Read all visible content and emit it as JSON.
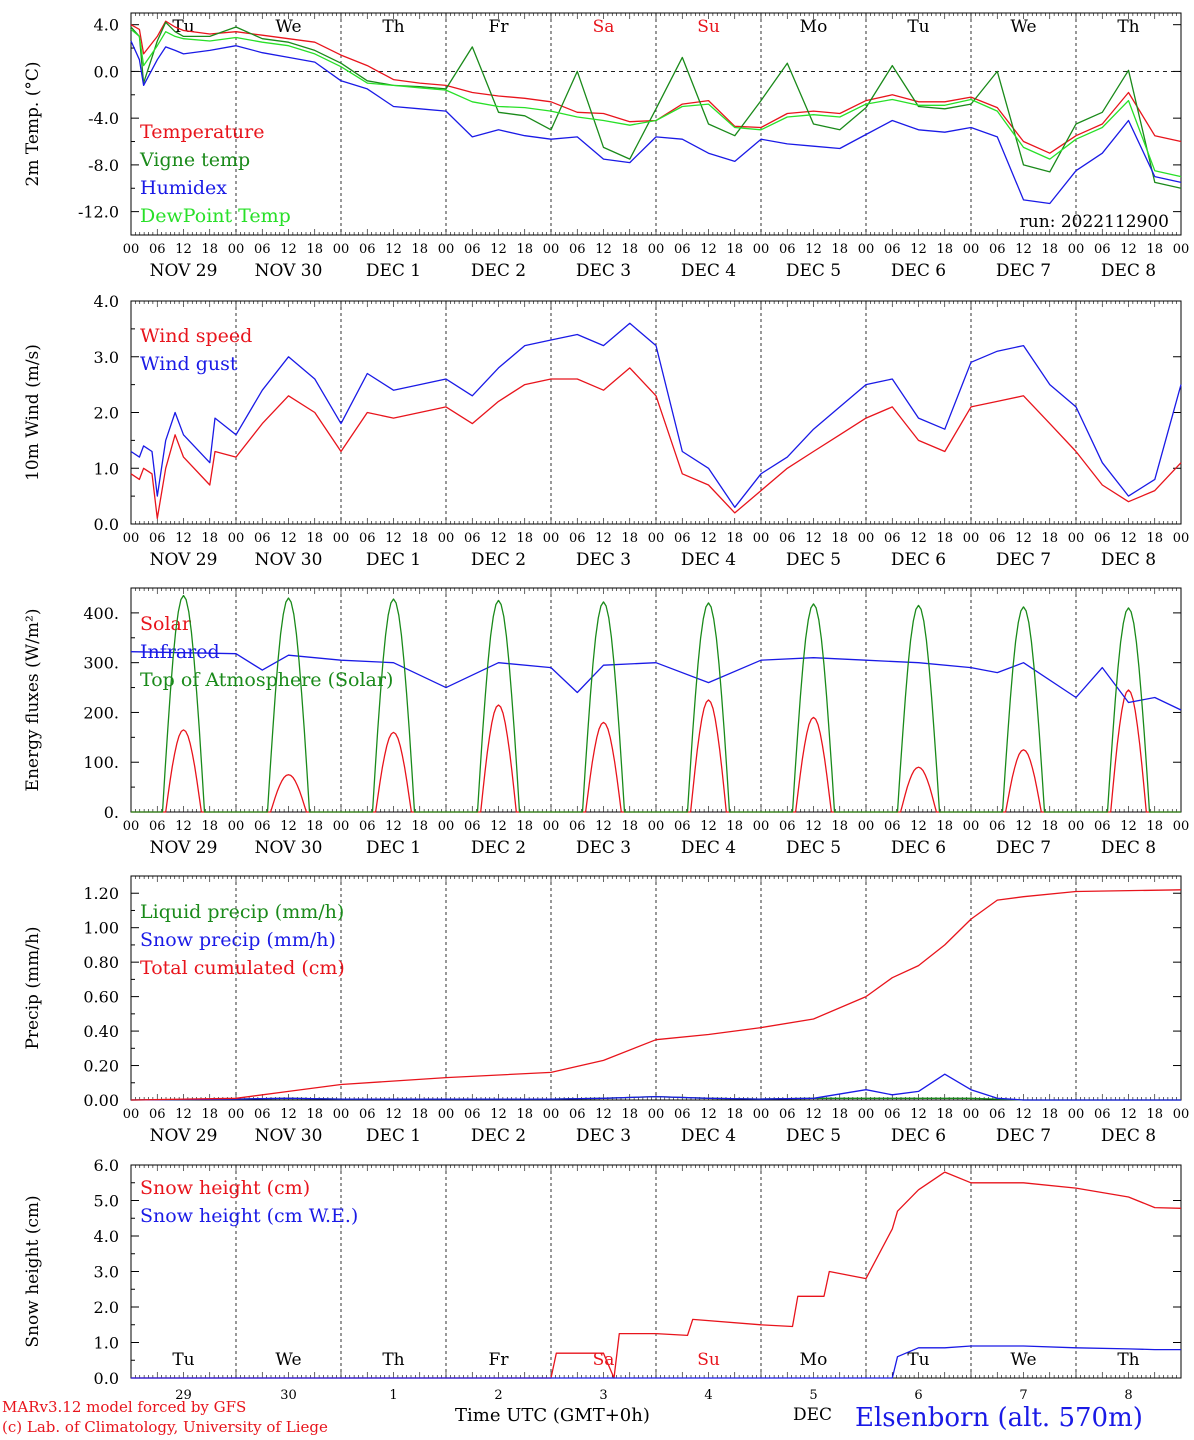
{
  "footer": {
    "model_line": "MARv3.12 model forced by GFS",
    "credit_line": "(c) Lab. of Climatology, University of Liege",
    "time_axis": "Time UTC (GMT+0h)",
    "month": "DEC",
    "station": "Elsenborn (alt. 570m)"
  },
  "day_names": [
    "Tu",
    "We",
    "Th",
    "Fr",
    "Sa",
    "Su",
    "Mo",
    "Tu",
    "We",
    "Th"
  ],
  "weekend_flags": [
    false,
    false,
    false,
    false,
    true,
    true,
    false,
    false,
    false,
    false
  ],
  "date_labels": [
    "NOV 29",
    "NOV 30",
    "DEC  1",
    "DEC  2",
    "DEC  3",
    "DEC  4",
    "DEC  5",
    "DEC  6",
    "DEC  7",
    "DEC  8"
  ],
  "hour_ticks": [
    "00",
    "06",
    "12",
    "18"
  ],
  "last_hour_tick": "00",
  "snow_day_numbers": [
    "29",
    "30",
    "1",
    "2",
    "3",
    "4",
    "5",
    "6",
    "7",
    "8"
  ],
  "colors": {
    "red": "#e8141c",
    "green": "#1a8a1a",
    "blue": "#1a1ae6",
    "lightgreen": "#28e028",
    "weekend": "#e8141c"
  },
  "chart_data": [
    {
      "id": "temp",
      "type": "line",
      "ylabel": "2m Temp. (°C)",
      "ylim": [
        -14,
        5
      ],
      "yticks": [
        "4.0",
        "0.0",
        "-4.0",
        "-8.0",
        "-12.0"
      ],
      "ytick_values": [
        4,
        0,
        -4,
        -8,
        -12
      ],
      "zero_line": true,
      "show_day_names": true,
      "note": "run: 2022112900",
      "x_days": [
        0,
        0.08,
        0.12,
        0.25,
        0.33,
        0.42,
        0.5,
        0.75,
        1.0,
        1.25,
        1.5,
        1.75,
        2.0,
        2.25,
        2.5,
        2.75,
        3.0,
        3.25,
        3.5,
        3.75,
        4.0,
        4.25,
        4.5,
        4.75,
        5.0,
        5.25,
        5.5,
        5.75,
        6.0,
        6.25,
        6.5,
        6.75,
        7.0,
        7.25,
        7.5,
        7.75,
        8.0,
        8.25,
        8.5,
        8.75,
        9.0,
        9.25,
        9.5,
        9.75,
        10.0
      ],
      "series": [
        {
          "name": "Temperature",
          "color": "red",
          "values": [
            4.0,
            3.6,
            1.5,
            3.0,
            4.3,
            3.8,
            3.5,
            3.2,
            3.4,
            3.1,
            2.8,
            2.5,
            1.4,
            0.5,
            -0.7,
            -1.0,
            -1.2,
            -1.8,
            -2.1,
            -2.3,
            -2.6,
            -3.5,
            -3.6,
            -4.3,
            -4.2,
            -2.8,
            -2.5,
            -4.7,
            -4.8,
            -3.6,
            -3.4,
            -3.6,
            -2.5,
            -2.0,
            -2.6,
            -2.6,
            -2.2,
            -3.1,
            -6.0,
            -7.0,
            -5.5,
            -4.5,
            -1.8,
            -5.5,
            -6.0
          ]
        },
        {
          "name": "Vigne temp",
          "color": "green",
          "values": [
            3.8,
            3.0,
            -1.0,
            2.6,
            4.2,
            3.4,
            3.0,
            3.0,
            3.8,
            2.8,
            2.5,
            1.8,
            0.7,
            -0.8,
            -1.2,
            -1.3,
            -1.5,
            2.1,
            -3.5,
            -3.8,
            -5.0,
            0.0,
            -6.5,
            -7.5,
            -3.2,
            1.2,
            -4.5,
            -5.5,
            -2.5,
            0.7,
            -4.5,
            -5.0,
            -3.1,
            0.5,
            -3.0,
            -3.2,
            -2.8,
            0.0,
            -8.0,
            -8.6,
            -4.5,
            -3.5,
            0.1,
            -9.5,
            -10.0
          ]
        },
        {
          "name": "Humidex",
          "color": "blue",
          "values": [
            2.6,
            1.0,
            -1.2,
            1.0,
            2.1,
            1.8,
            1.5,
            1.8,
            2.2,
            1.6,
            1.2,
            0.8,
            -0.8,
            -1.5,
            -3.0,
            -3.2,
            -3.4,
            -5.6,
            -5.0,
            -5.5,
            -5.8,
            -5.6,
            -7.5,
            -7.8,
            -5.6,
            -5.8,
            -7.0,
            -7.7,
            -5.8,
            -6.2,
            -6.4,
            -6.6,
            -5.4,
            -4.2,
            -5.0,
            -5.2,
            -4.8,
            -5.6,
            -11.0,
            -11.3,
            -8.5,
            -7.0,
            -4.2,
            -9.0,
            -9.5
          ]
        },
        {
          "name": "DewPoint Temp",
          "color": "lightgreen",
          "values": [
            3.6,
            3.0,
            0.5,
            2.2,
            3.4,
            3.0,
            2.8,
            2.6,
            2.9,
            2.5,
            2.2,
            1.5,
            0.4,
            -1.0,
            -1.2,
            -1.4,
            -1.6,
            -2.6,
            -3.0,
            -3.1,
            -3.4,
            -3.9,
            -4.2,
            -4.6,
            -4.2,
            -3.0,
            -2.8,
            -4.8,
            -5.0,
            -3.9,
            -3.7,
            -3.9,
            -2.8,
            -2.4,
            -2.9,
            -2.9,
            -2.4,
            -3.4,
            -6.5,
            -7.5,
            -5.8,
            -4.8,
            -2.5,
            -8.5,
            -9.0
          ]
        }
      ]
    },
    {
      "id": "wind",
      "type": "line",
      "ylabel": "10m Wind (m/s)",
      "ylim": [
        0,
        4
      ],
      "yticks": [
        "4.0",
        "3.0",
        "2.0",
        "1.0",
        "0.0"
      ],
      "ytick_values": [
        4,
        3,
        2,
        1,
        0
      ],
      "x_days": [
        0,
        0.08,
        0.12,
        0.2,
        0.25,
        0.33,
        0.42,
        0.5,
        0.75,
        0.8,
        1.0,
        1.25,
        1.5,
        1.75,
        2.0,
        2.25,
        2.5,
        2.75,
        3.0,
        3.25,
        3.5,
        3.75,
        4.0,
        4.25,
        4.5,
        4.75,
        5.0,
        5.25,
        5.5,
        5.75,
        6.0,
        6.25,
        6.5,
        6.75,
        7.0,
        7.25,
        7.5,
        7.75,
        8.0,
        8.25,
        8.5,
        8.75,
        9.0,
        9.25,
        9.5,
        9.75,
        10.0
      ],
      "series": [
        {
          "name": "Wind speed",
          "color": "red",
          "values": [
            0.9,
            0.8,
            1.0,
            0.9,
            0.1,
            1.0,
            1.6,
            1.2,
            0.7,
            1.3,
            1.2,
            1.8,
            2.3,
            2.0,
            1.3,
            2.0,
            1.9,
            2.0,
            2.1,
            1.8,
            2.2,
            2.5,
            2.6,
            2.6,
            2.4,
            2.8,
            2.3,
            0.9,
            0.7,
            0.2,
            0.6,
            1.0,
            1.3,
            1.6,
            1.9,
            2.1,
            1.5,
            1.3,
            2.1,
            2.2,
            2.3,
            1.8,
            1.3,
            0.7,
            0.4,
            0.6,
            1.1
          ]
        },
        {
          "name": "Wind gust",
          "color": "blue",
          "values": [
            1.3,
            1.2,
            1.4,
            1.3,
            0.5,
            1.5,
            2.0,
            1.6,
            1.1,
            1.9,
            1.6,
            2.4,
            3.0,
            2.6,
            1.8,
            2.7,
            2.4,
            2.5,
            2.6,
            2.3,
            2.8,
            3.2,
            3.3,
            3.4,
            3.2,
            3.6,
            3.2,
            1.3,
            1.0,
            0.3,
            0.9,
            1.2,
            1.7,
            2.1,
            2.5,
            2.6,
            1.9,
            1.7,
            2.9,
            3.1,
            3.2,
            2.5,
            2.1,
            1.1,
            0.5,
            0.8,
            2.5
          ]
        }
      ]
    },
    {
      "id": "energy",
      "type": "line",
      "ylabel": "Energy fluxes (W/m²)",
      "ylim": [
        0,
        450
      ],
      "yticks": [
        "400.",
        "300.",
        "200.",
        "100.",
        "0."
      ],
      "ytick_values": [
        400,
        300,
        200,
        100,
        0
      ],
      "x_days": [
        0,
        0.5,
        1.0,
        1.25,
        1.5,
        2.0,
        2.5,
        3.0,
        3.5,
        4.0,
        4.25,
        4.5,
        5.0,
        5.5,
        6.0,
        6.5,
        7.0,
        7.5,
        8.0,
        8.25,
        8.5,
        9.0,
        9.25,
        9.5,
        9.75,
        10.0
      ],
      "series": [
        {
          "name": "Solar",
          "color": "red",
          "shape": "diurnal",
          "sunrise_day": 0.33,
          "sunset_day": 0.67,
          "values": [
            165,
            75,
            160,
            215,
            180,
            225,
            190,
            90,
            125,
            245
          ]
        },
        {
          "name": "Infrared",
          "color": "blue",
          "values": [
            322,
            320,
            318,
            285,
            315,
            305,
            300,
            250,
            300,
            290,
            240,
            295,
            300,
            260,
            305,
            310,
            305,
            300,
            290,
            280,
            300,
            230,
            290,
            220,
            230,
            205
          ]
        },
        {
          "name": "Top of Atmosphere (Solar)",
          "color": "green",
          "shape": "diurnal",
          "sunrise_day": 0.3,
          "sunset_day": 0.7,
          "values": [
            435,
            430,
            428,
            425,
            422,
            420,
            418,
            415,
            412,
            410
          ]
        }
      ]
    },
    {
      "id": "precip",
      "type": "line",
      "ylabel": "Precip (mm/h)",
      "ylim": [
        0,
        1.3
      ],
      "yticks": [
        "1.20",
        "1.00",
        "0.80",
        "0.60",
        "0.40",
        "0.20",
        "0.00"
      ],
      "ytick_values": [
        1.2,
        1.0,
        0.8,
        0.6,
        0.4,
        0.2,
        0.0
      ],
      "x_days": [
        0,
        1.0,
        1.5,
        2.0,
        3.0,
        4.0,
        4.5,
        5.0,
        5.5,
        6.0,
        6.5,
        7.0,
        7.25,
        7.5,
        7.75,
        8.0,
        8.25,
        8.5,
        9.0,
        10.0
      ],
      "series": [
        {
          "name": "Liquid precip (mm/h)",
          "color": "green",
          "values": [
            0,
            0.005,
            0.01,
            0.005,
            0.005,
            0.005,
            0.01,
            0.02,
            0.01,
            0.005,
            0.01,
            0.01,
            0.01,
            0.01,
            0.01,
            0.01,
            0.005,
            0,
            0,
            0
          ]
        },
        {
          "name": "Snow precip (mm/h)",
          "color": "blue",
          "values": [
            0,
            0.005,
            0.01,
            0.005,
            0.005,
            0.005,
            0.01,
            0.02,
            0.01,
            0.005,
            0.01,
            0.06,
            0.03,
            0.05,
            0.15,
            0.06,
            0.01,
            0,
            0,
            0
          ]
        },
        {
          "name": "Total cumulated (cm)",
          "color": "red",
          "values": [
            0,
            0.01,
            0.05,
            0.09,
            0.13,
            0.16,
            0.23,
            0.35,
            0.38,
            0.42,
            0.47,
            0.6,
            0.71,
            0.78,
            0.9,
            1.05,
            1.16,
            1.18,
            1.21,
            1.22
          ]
        }
      ]
    },
    {
      "id": "snow",
      "type": "line",
      "ylabel": "Snow height (cm)",
      "ylim": [
        0,
        6
      ],
      "yticks": [
        "6.0",
        "5.0",
        "4.0",
        "3.0",
        "2.0",
        "1.0",
        "0.0"
      ],
      "ytick_values": [
        6,
        5,
        4,
        3,
        2,
        1,
        0
      ],
      "show_day_names_bottom": true,
      "x_days": [
        0,
        4.0,
        4.05,
        4.5,
        4.6,
        4.65,
        5.0,
        5.3,
        5.35,
        6.0,
        6.3,
        6.35,
        6.6,
        6.65,
        7.0,
        7.25,
        7.3,
        7.5,
        7.75,
        8.0,
        8.5,
        9.0,
        9.5,
        9.75,
        10.0
      ],
      "series": [
        {
          "name": "Snow height (cm)",
          "color": "red",
          "values": [
            0,
            0,
            0.7,
            0.7,
            0.0,
            1.25,
            1.25,
            1.2,
            1.65,
            1.5,
            1.45,
            2.3,
            2.3,
            3.0,
            2.8,
            4.2,
            4.7,
            5.3,
            5.8,
            5.5,
            5.5,
            5.35,
            5.1,
            4.8,
            4.78
          ]
        },
        {
          "name": "Snow height (cm W.E.)",
          "color": "blue",
          "values": [
            0,
            0,
            0,
            0,
            0,
            0,
            0,
            0,
            0,
            0,
            0,
            0,
            0,
            0,
            0,
            0,
            0.6,
            0.85,
            0.85,
            0.9,
            0.9,
            0.85,
            0.82,
            0.8,
            0.8
          ]
        }
      ]
    }
  ]
}
